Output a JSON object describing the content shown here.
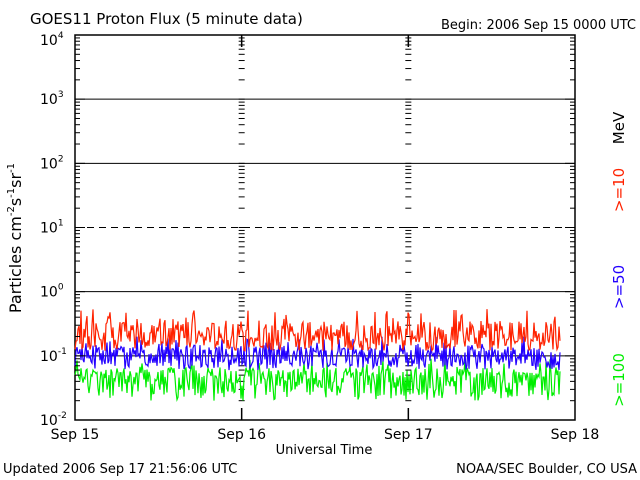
{
  "chart_data": {
    "type": "line",
    "title": "GOES11 Proton Flux (5 minute data)",
    "begin": "Begin: 2006 Sep 15 0000 UTC",
    "updated": "Updated 2006 Sep 17 21:56:06 UTC",
    "credit": "NOAA/SEC Boulder, CO USA",
    "xlabel": "Universal Time",
    "ylabel_main": "Particles cm",
    "ylabel_sup1": "-2",
    "ylabel_mid1": "s",
    "ylabel_sup2": "-1",
    "ylabel_mid2": "sr",
    "ylabel_sup3": "-1",
    "yscale": "log",
    "ylim": [
      0.01,
      10000
    ],
    "yticks": [
      {
        "base": "10",
        "exp": "-2"
      },
      {
        "base": "10",
        "exp": "-1"
      },
      {
        "base": "10",
        "exp": "0"
      },
      {
        "base": "10",
        "exp": "1"
      },
      {
        "base": "10",
        "exp": "2"
      },
      {
        "base": "10",
        "exp": "3"
      },
      {
        "base": "10",
        "exp": "4"
      }
    ],
    "x_range_days": [
      0,
      3
    ],
    "x_end_day": 2.915,
    "xticks": [
      "Sep 15",
      "Sep 16",
      "Sep 17",
      "Sep 18"
    ],
    "energy_unit": "MeV",
    "colors": {
      "ge10": "#ff2200",
      "ge50": "#2200ff",
      "ge100": "#00ee00"
    },
    "series": [
      {
        "name": ">=10",
        "range": [
          0.12,
          0.55
        ],
        "typical": 0.2
      },
      {
        "name": ">=50",
        "range": [
          0.06,
          0.2
        ],
        "typical": 0.1
      },
      {
        "name": ">=100",
        "range": [
          0.02,
          0.09
        ],
        "typical": 0.045
      }
    ]
  }
}
